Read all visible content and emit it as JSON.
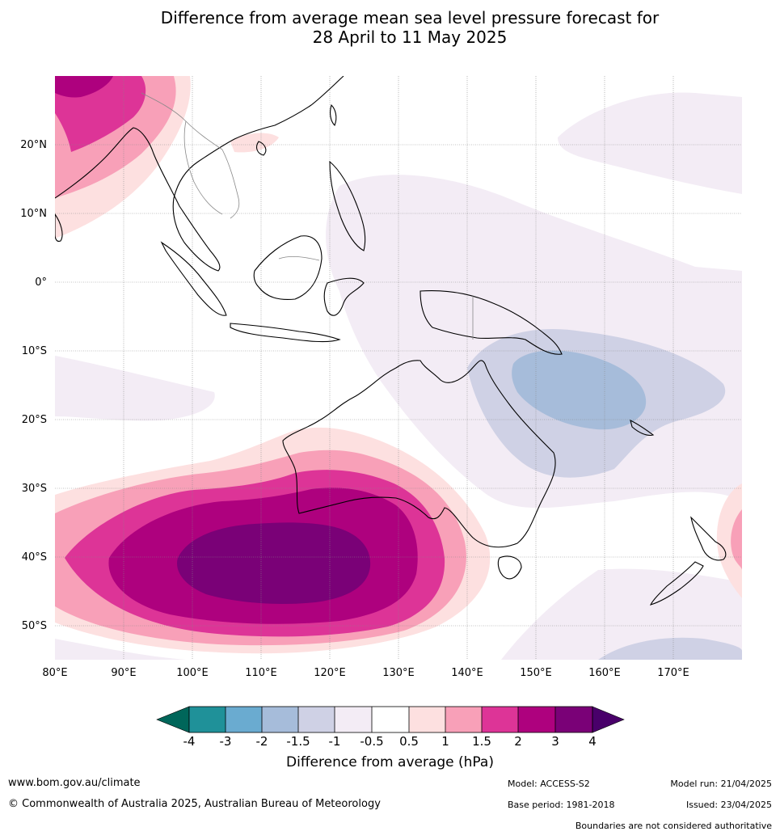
{
  "title_line1": "Difference from average mean sea level pressure forecast for",
  "title_line2": "28 April to 11 May 2025",
  "map": {
    "lat_labels": [
      "20°N",
      "10°N",
      "0°",
      "10°S",
      "20°S",
      "30°S",
      "40°S",
      "50°S"
    ],
    "lon_labels": [
      "80°E",
      "90°E",
      "100°E",
      "110°E",
      "120°E",
      "130°E",
      "140°E",
      "150°E",
      "160°E",
      "170°E"
    ]
  },
  "colorbar": {
    "label": "Difference from average (hPa)",
    "ticks": [
      "-4",
      "-3",
      "-2",
      "-1.5",
      "-1",
      "-0.5",
      "0.5",
      "1",
      "1.5",
      "2",
      "3",
      "4"
    ],
    "colors": {
      "below_-4": "#00665a",
      "-4_-3": "#1f9199",
      "-3_-2": "#6aabd0",
      "-2_-1.5": "#a6bcda",
      "-1.5_-1": "#cfd1e5",
      "-1_-0.5": "#f3ecf5",
      "-0.5_0.5": "#ffffff",
      "0.5_1": "#fde0e0",
      "1_1.5": "#f8a0b8",
      "1.5_2": "#dd3497",
      "2_3": "#ae017e",
      "3_4": "#7a0177",
      "above_4": "#49006a"
    }
  },
  "footer": {
    "website": "www.bom.gov.au/climate",
    "copyright": "© Commonwealth of Australia 2025, Australian Bureau of Meteorology",
    "model": "Model: ACCESS-S2",
    "base_period": "Base period: 1981-2018",
    "model_run": "Model run: 21/04/2025",
    "issued": "Issued: 23/04/2025",
    "disclaimer": "Boundaries are not considered authoritative"
  }
}
